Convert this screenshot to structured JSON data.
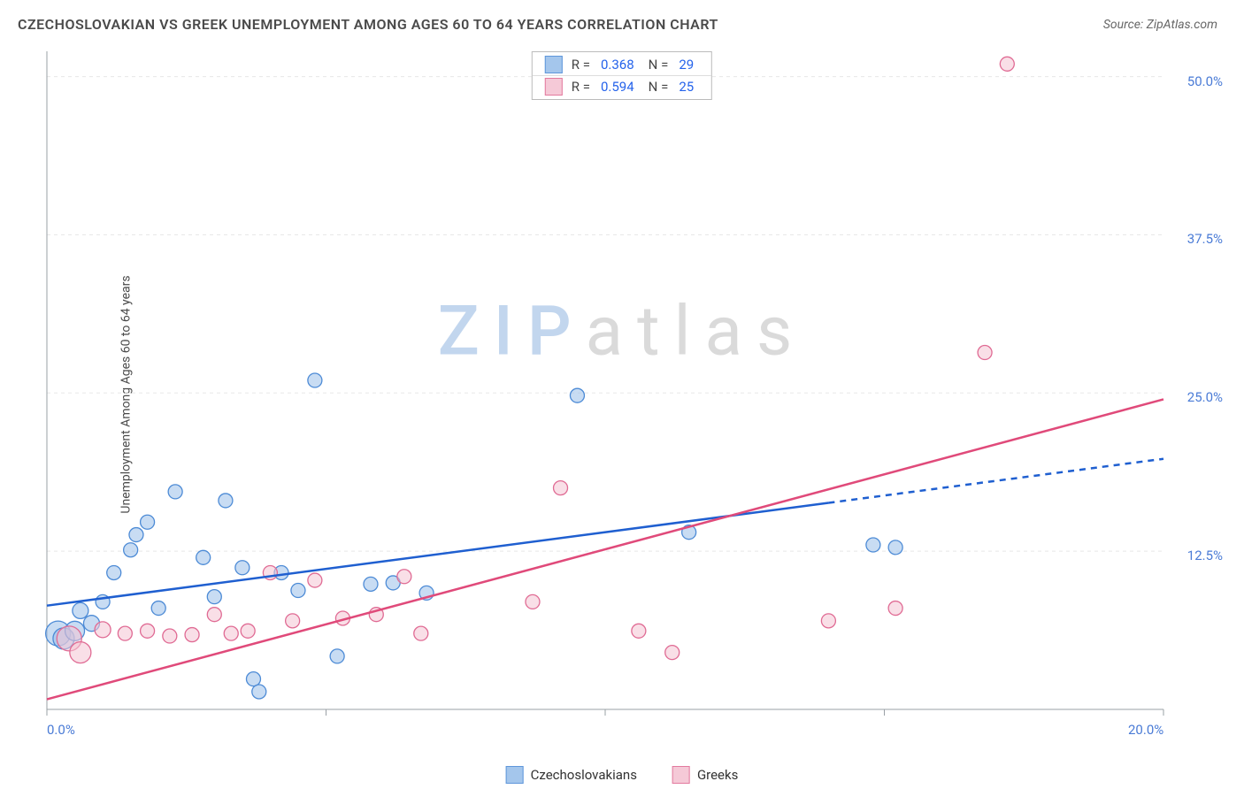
{
  "title": "CZECHOSLOVAKIAN VS GREEK UNEMPLOYMENT AMONG AGES 60 TO 64 YEARS CORRELATION CHART",
  "source_prefix": "Source: ",
  "source": "ZipAtlas.com",
  "ylabel": "Unemployment Among Ages 60 to 64 years",
  "watermark": {
    "left": "ZIP",
    "right": "atlas"
  },
  "chart": {
    "type": "scatter",
    "xlim": [
      0,
      20
    ],
    "ylim": [
      0,
      52
    ],
    "x_ticks": [
      0,
      5,
      10,
      15,
      20
    ],
    "x_tick_labels": [
      "0.0%",
      "",
      "",
      "",
      "20.0%"
    ],
    "y_ticks": [
      12.5,
      25,
      37.5,
      50
    ],
    "y_tick_labels": [
      "12.5%",
      "25.0%",
      "37.5%",
      "50.0%"
    ],
    "background_color": "#ffffff",
    "grid_color": "#e8e8e8",
    "grid_dash": "4 4",
    "axis_color": "#9aa0a6",
    "tick_label_color": "#4a7bd6",
    "series": [
      {
        "id": "czech",
        "label": "Czechoslovakians",
        "marker_fill": "#9bc0ea",
        "marker_stroke": "#4d8bd6",
        "fill_opacity": 0.55,
        "trend_color": "#1f5fd0",
        "trend_width": 2.5,
        "trend_y_at_x0": 8.2,
        "trend_y_at_xmax": 19.8,
        "trend_solid_until_x": 14,
        "R": "0.368",
        "N": "29",
        "points": [
          {
            "x": 0.2,
            "y": 6.0,
            "r": 14
          },
          {
            "x": 0.3,
            "y": 5.6,
            "r": 12
          },
          {
            "x": 0.5,
            "y": 6.2,
            "r": 11
          },
          {
            "x": 0.6,
            "y": 7.8,
            "r": 9
          },
          {
            "x": 0.8,
            "y": 6.8,
            "r": 9
          },
          {
            "x": 1.0,
            "y": 8.5,
            "r": 8
          },
          {
            "x": 1.2,
            "y": 10.8,
            "r": 8
          },
          {
            "x": 1.5,
            "y": 12.6,
            "r": 8
          },
          {
            "x": 1.6,
            "y": 13.8,
            "r": 8
          },
          {
            "x": 1.8,
            "y": 14.8,
            "r": 8
          },
          {
            "x": 2.0,
            "y": 8.0,
            "r": 8
          },
          {
            "x": 2.3,
            "y": 17.2,
            "r": 8
          },
          {
            "x": 2.8,
            "y": 12.0,
            "r": 8
          },
          {
            "x": 3.0,
            "y": 8.9,
            "r": 8
          },
          {
            "x": 3.2,
            "y": 16.5,
            "r": 8
          },
          {
            "x": 3.5,
            "y": 11.2,
            "r": 8
          },
          {
            "x": 3.7,
            "y": 2.4,
            "r": 8
          },
          {
            "x": 3.8,
            "y": 1.4,
            "r": 8
          },
          {
            "x": 4.2,
            "y": 10.8,
            "r": 8
          },
          {
            "x": 4.5,
            "y": 9.4,
            "r": 8
          },
          {
            "x": 4.8,
            "y": 26.0,
            "r": 8
          },
          {
            "x": 5.2,
            "y": 4.2,
            "r": 8
          },
          {
            "x": 5.8,
            "y": 9.9,
            "r": 8
          },
          {
            "x": 6.2,
            "y": 10.0,
            "r": 8
          },
          {
            "x": 6.8,
            "y": 9.2,
            "r": 8
          },
          {
            "x": 9.5,
            "y": 24.8,
            "r": 8
          },
          {
            "x": 11.5,
            "y": 14.0,
            "r": 8
          },
          {
            "x": 14.8,
            "y": 13.0,
            "r": 8
          },
          {
            "x": 15.2,
            "y": 12.8,
            "r": 8
          }
        ]
      },
      {
        "id": "greek",
        "label": "Greeks",
        "marker_fill": "#f4c4d3",
        "marker_stroke": "#e06b94",
        "fill_opacity": 0.55,
        "trend_color": "#e04a7a",
        "trend_width": 2.5,
        "trend_y_at_x0": 0.8,
        "trend_y_at_xmax": 24.5,
        "trend_solid_until_x": 20,
        "R": "0.594",
        "N": "25",
        "points": [
          {
            "x": 0.4,
            "y": 5.6,
            "r": 14
          },
          {
            "x": 0.6,
            "y": 4.5,
            "r": 12
          },
          {
            "x": 1.0,
            "y": 6.3,
            "r": 9
          },
          {
            "x": 1.4,
            "y": 6.0,
            "r": 8
          },
          {
            "x": 1.8,
            "y": 6.2,
            "r": 8
          },
          {
            "x": 2.2,
            "y": 5.8,
            "r": 8
          },
          {
            "x": 2.6,
            "y": 5.9,
            "r": 8
          },
          {
            "x": 3.0,
            "y": 7.5,
            "r": 8
          },
          {
            "x": 3.3,
            "y": 6.0,
            "r": 8
          },
          {
            "x": 3.6,
            "y": 6.2,
            "r": 8
          },
          {
            "x": 4.0,
            "y": 10.8,
            "r": 8
          },
          {
            "x": 4.4,
            "y": 7.0,
            "r": 8
          },
          {
            "x": 4.8,
            "y": 10.2,
            "r": 8
          },
          {
            "x": 5.3,
            "y": 7.2,
            "r": 8
          },
          {
            "x": 5.9,
            "y": 7.5,
            "r": 8
          },
          {
            "x": 6.4,
            "y": 10.5,
            "r": 8
          },
          {
            "x": 6.7,
            "y": 6.0,
            "r": 8
          },
          {
            "x": 8.7,
            "y": 8.5,
            "r": 8
          },
          {
            "x": 9.2,
            "y": 17.5,
            "r": 8
          },
          {
            "x": 10.6,
            "y": 6.2,
            "r": 8
          },
          {
            "x": 11.2,
            "y": 4.5,
            "r": 8
          },
          {
            "x": 14.0,
            "y": 7.0,
            "r": 8
          },
          {
            "x": 15.2,
            "y": 8.0,
            "r": 8
          },
          {
            "x": 16.8,
            "y": 28.2,
            "r": 8
          },
          {
            "x": 17.2,
            "y": 51.0,
            "r": 8
          }
        ]
      }
    ]
  },
  "stats_labels": {
    "R": "R =",
    "N": "N ="
  },
  "legend": {
    "s1": "Czechoslovakians",
    "s2": "Greeks"
  }
}
